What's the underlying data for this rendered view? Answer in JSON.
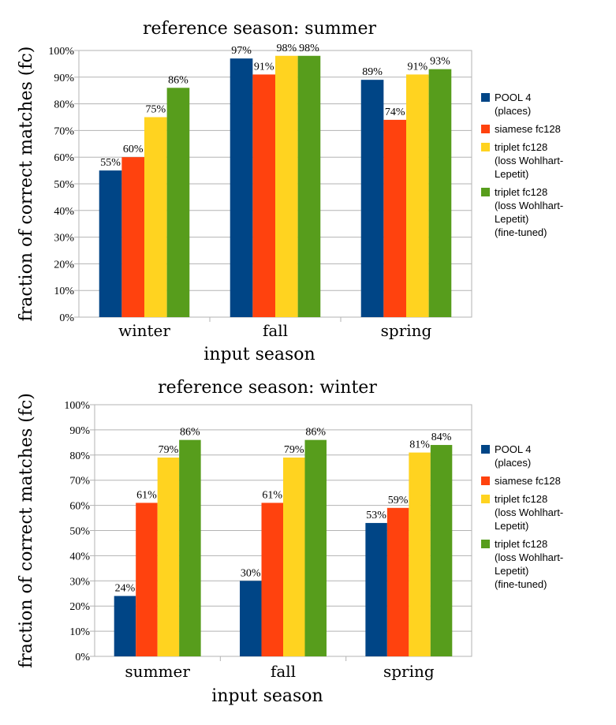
{
  "series_colors": [
    "#004586",
    "#ff420e",
    "#ffd320",
    "#579d1c"
  ],
  "legend": [
    [
      "POOL 4",
      "(places)"
    ],
    [
      "siamese fc128"
    ],
    [
      "triplet fc128",
      "(loss Wohlhart-",
      "Lepetit)"
    ],
    [
      "triplet fc128",
      "(loss Wohlhart-",
      "Lepetit)",
      "(fine-tuned)"
    ]
  ],
  "chart_data": [
    {
      "type": "bar",
      "title": "reference season: summer",
      "xlabel": "input season",
      "ylabel": "fraction of correct matches (fc)",
      "ylim": [
        0,
        100
      ],
      "yticks": [
        "0%",
        "10%",
        "20%",
        "30%",
        "40%",
        "50%",
        "60%",
        "70%",
        "80%",
        "90%",
        "100%"
      ],
      "categories": [
        "winter",
        "fall",
        "spring"
      ],
      "series": [
        {
          "name": "POOL 4 (places)",
          "values": [
            55,
            97,
            89
          ],
          "labels": [
            "55%",
            "97%",
            "89%"
          ]
        },
        {
          "name": "siamese fc128",
          "values": [
            60,
            91,
            74
          ],
          "labels": [
            "60%",
            "91%",
            "74%"
          ]
        },
        {
          "name": "triplet fc128 (loss Wohlhart-Lepetit)",
          "values": [
            75,
            98,
            91
          ],
          "labels": [
            "75%",
            "98%",
            "91%"
          ]
        },
        {
          "name": "triplet fc128 (loss Wohlhart-Lepetit) (fine-tuned)",
          "values": [
            86,
            98,
            93
          ],
          "labels": [
            "86%",
            "98%",
            "93%"
          ]
        }
      ]
    },
    {
      "type": "bar",
      "title": "reference season: winter",
      "xlabel": "input season",
      "ylabel": "fraction of correct matches (fc)",
      "ylim": [
        0,
        100
      ],
      "yticks": [
        "0%",
        "10%",
        "20%",
        "30%",
        "40%",
        "50%",
        "60%",
        "70%",
        "80%",
        "90%",
        "100%"
      ],
      "categories": [
        "summer",
        "fall",
        "spring"
      ],
      "series": [
        {
          "name": "POOL 4 (places)",
          "values": [
            24,
            30,
            53
          ],
          "labels": [
            "24%",
            "30%",
            "53%"
          ]
        },
        {
          "name": "siamese fc128",
          "values": [
            61,
            61,
            59
          ],
          "labels": [
            "61%",
            "61%",
            "59%"
          ]
        },
        {
          "name": "triplet fc128 (loss Wohlhart-Lepetit)",
          "values": [
            79,
            79,
            81
          ],
          "labels": [
            "79%",
            "79%",
            "81%"
          ]
        },
        {
          "name": "triplet fc128 (loss Wohlhart-Lepetit) (fine-tuned)",
          "values": [
            86,
            86,
            84
          ],
          "labels": [
            "86%",
            "86%",
            "84%"
          ]
        }
      ]
    }
  ]
}
